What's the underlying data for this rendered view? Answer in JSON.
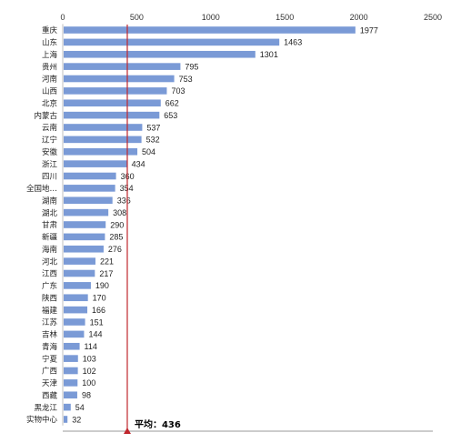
{
  "chart_data": {
    "type": "bar",
    "orientation": "horizontal",
    "categories": [
      "重庆",
      "山东",
      "上海",
      "贵州",
      "河南",
      "山西",
      "北京",
      "内蒙古",
      "云南",
      "辽宁",
      "安徽",
      "浙江",
      "四川",
      "全国地…",
      "湖南",
      "湖北",
      "甘肃",
      "新疆",
      "海南",
      "河北",
      "江西",
      "广东",
      "陕西",
      "福建",
      "江苏",
      "吉林",
      "青海",
      "宁夏",
      "广西",
      "天津",
      "西藏",
      "黑龙江",
      "实物中心"
    ],
    "values": [
      1977,
      1463,
      1301,
      795,
      753,
      703,
      662,
      653,
      537,
      532,
      504,
      434,
      360,
      354,
      336,
      308,
      290,
      285,
      276,
      221,
      217,
      190,
      170,
      166,
      151,
      144,
      114,
      103,
      102,
      100,
      98,
      54,
      32
    ],
    "value_labels": [
      "1977",
      "1463",
      "1301",
      "795",
      "753",
      "703",
      "662",
      "653",
      "537",
      "532",
      "504",
      "434",
      "360",
      "354",
      "336",
      "308",
      "290",
      "285",
      "276",
      "221",
      "217",
      "190",
      "170",
      "166",
      "151",
      "144",
      "114",
      "103",
      "102",
      "100",
      "98",
      "54",
      "32"
    ],
    "xlim": [
      0,
      2500
    ],
    "x_ticks": [
      "0",
      "500",
      "1000",
      "1500",
      "2000",
      "2500"
    ],
    "x_tick_values": [
      0,
      500,
      1000,
      1500,
      2000,
      2500
    ],
    "axis_position": "top",
    "grid": false,
    "legend": "none",
    "bar_color": "#7a9ad6",
    "average": {
      "value": 436,
      "label": "平均：436",
      "color": "#c0262d"
    },
    "title": "",
    "xlabel": "",
    "ylabel": ""
  }
}
